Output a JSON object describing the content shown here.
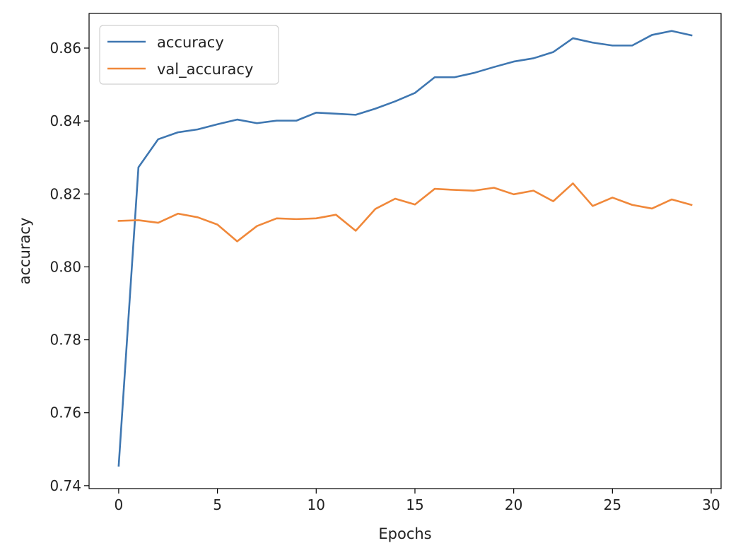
{
  "chart_data": {
    "type": "line",
    "title": "",
    "xlabel": "Epochs",
    "ylabel": "accuracy",
    "xlim": [
      -1.5,
      30.5
    ],
    "ylim": [
      0.7392,
      0.8695
    ],
    "xticks": [
      0,
      5,
      10,
      15,
      20,
      25,
      30
    ],
    "xtick_labels": [
      "0",
      "5",
      "10",
      "15",
      "20",
      "25",
      "30"
    ],
    "yticks": [
      0.74,
      0.76,
      0.78,
      0.8,
      0.82,
      0.84,
      0.86
    ],
    "ytick_labels": [
      "0.74",
      "0.76",
      "0.78",
      "0.80",
      "0.82",
      "0.84",
      "0.86"
    ],
    "grid": false,
    "legend": "top-left",
    "x": [
      0,
      1,
      2,
      3,
      4,
      5,
      6,
      7,
      8,
      9,
      10,
      11,
      12,
      13,
      14,
      15,
      16,
      17,
      18,
      19,
      20,
      21,
      22,
      23,
      24,
      25,
      26,
      27,
      28,
      29
    ],
    "series": [
      {
        "name": "accuracy",
        "color": "#3f77b1",
        "values": [
          0.7455,
          0.8273,
          0.835,
          0.8369,
          0.8377,
          0.8391,
          0.8404,
          0.8394,
          0.8401,
          0.8401,
          0.8423,
          0.842,
          0.8417,
          0.8434,
          0.8454,
          0.8477,
          0.852,
          0.852,
          0.8532,
          0.8548,
          0.8563,
          0.8572,
          0.8589,
          0.8627,
          0.8615,
          0.8607,
          0.8607,
          0.8636,
          0.8647,
          0.8635
        ]
      },
      {
        "name": "val_accuracy",
        "color": "#f0883a",
        "values": [
          0.8126,
          0.8128,
          0.8121,
          0.8146,
          0.8136,
          0.8116,
          0.807,
          0.8112,
          0.8133,
          0.8131,
          0.8133,
          0.8143,
          0.8099,
          0.8159,
          0.8187,
          0.8171,
          0.8214,
          0.8211,
          0.8209,
          0.8217,
          0.8199,
          0.8209,
          0.818,
          0.8229,
          0.8167,
          0.819,
          0.817,
          0.816,
          0.8185,
          0.817
        ]
      }
    ]
  }
}
